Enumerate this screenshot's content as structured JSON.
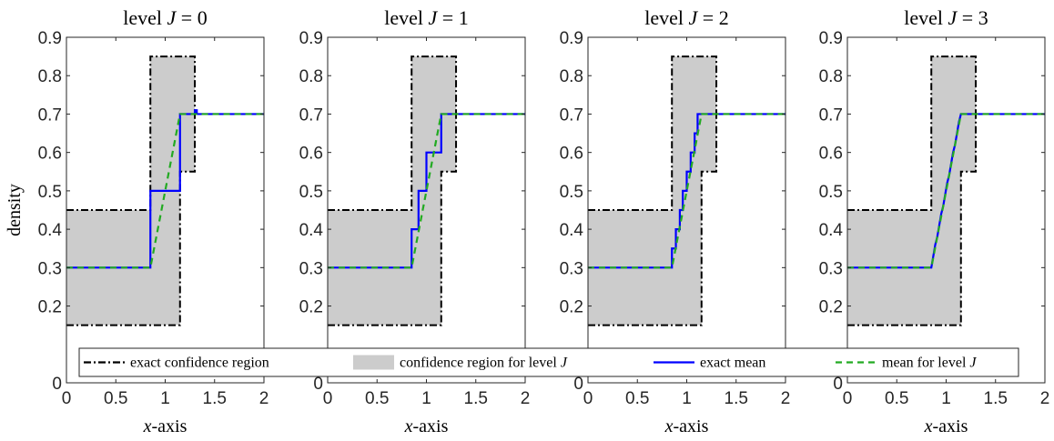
{
  "chart_data": {
    "type": "line",
    "ylabel": "density",
    "xlabel_var": "x",
    "xlabel_rest": "-axis",
    "xlim": [
      0,
      2
    ],
    "ylim": [
      0,
      0.9
    ],
    "xticks": [
      0,
      0.5,
      1,
      1.5,
      2
    ],
    "xtick_labels": [
      "0",
      "0.5",
      "1",
      "1.5",
      "2"
    ],
    "yticks": [
      0,
      0.2,
      0.3,
      0.4,
      0.5,
      0.6,
      0.7,
      0.8,
      0.9
    ],
    "ytick_labels": [
      "0",
      "0.2",
      "0.3",
      "0.4",
      "0.5",
      "0.6",
      "0.7",
      "0.8",
      "0.9"
    ],
    "colors": {
      "exact_region": "#000000",
      "region_fill": "#cccccc",
      "exact_mean": "#0000ff",
      "level_mean": "#22aa22"
    },
    "legend": {
      "placement": "bottom",
      "entries": [
        {
          "key": "exact_region",
          "label": "exact confidence region",
          "style": "dashdot"
        },
        {
          "key": "region_fill",
          "label_prefix": "confidence region for level ",
          "label_var": "J",
          "style": "patch"
        },
        {
          "key": "exact_mean",
          "label": "exact mean",
          "style": "solid"
        },
        {
          "key": "level_mean",
          "label_prefix": "mean for level ",
          "label_var": "J",
          "style": "dashed"
        }
      ]
    },
    "exact_region": {
      "upper": [
        [
          0,
          0.45
        ],
        [
          0.85,
          0.45
        ],
        [
          0.85,
          0.85
        ],
        [
          1.3,
          0.85
        ],
        [
          1.3,
          0.7
        ],
        [
          2,
          0.7
        ]
      ],
      "lower": [
        [
          0,
          0.15
        ],
        [
          1.15,
          0.15
        ],
        [
          1.15,
          0.55
        ],
        [
          1.3,
          0.55
        ],
        [
          1.3,
          0.7
        ],
        [
          2,
          0.7
        ]
      ]
    },
    "panels": [
      {
        "title_prefix": "level ",
        "title_var": "J",
        "title_suffix": " = 0",
        "exact_mean": [
          [
            0,
            0.3
          ],
          [
            0.85,
            0.3
          ],
          [
            0.85,
            0.5
          ],
          [
            1.15,
            0.5
          ],
          [
            1.15,
            0.7
          ],
          [
            1.3,
            0.7
          ],
          [
            1.3,
            0.71
          ],
          [
            1.32,
            0.71
          ],
          [
            1.32,
            0.7
          ],
          [
            2,
            0.7
          ]
        ],
        "level_mean": [
          [
            0,
            0.3
          ],
          [
            0.85,
            0.3
          ],
          [
            1.15,
            0.7
          ],
          [
            2,
            0.7
          ]
        ]
      },
      {
        "title_prefix": "level ",
        "title_var": "J",
        "title_suffix": " = 1",
        "exact_mean": [
          [
            0,
            0.3
          ],
          [
            0.85,
            0.3
          ],
          [
            0.85,
            0.4
          ],
          [
            0.92,
            0.4
          ],
          [
            0.92,
            0.5
          ],
          [
            1.0,
            0.5
          ],
          [
            1.0,
            0.6
          ],
          [
            1.08,
            0.6
          ],
          [
            1.08,
            0.6
          ],
          [
            1.15,
            0.6
          ],
          [
            1.15,
            0.7
          ],
          [
            2,
            0.7
          ]
        ],
        "level_mean": [
          [
            0,
            0.3
          ],
          [
            0.85,
            0.3
          ],
          [
            1.15,
            0.7
          ],
          [
            2,
            0.7
          ]
        ]
      },
      {
        "title_prefix": "level ",
        "title_var": "J",
        "title_suffix": " = 2",
        "exact_mean": [
          [
            0,
            0.3
          ],
          [
            0.85,
            0.3
          ],
          [
            0.85,
            0.35
          ],
          [
            0.89,
            0.35
          ],
          [
            0.89,
            0.4
          ],
          [
            0.93,
            0.4
          ],
          [
            0.93,
            0.45
          ],
          [
            0.96,
            0.45
          ],
          [
            0.96,
            0.5
          ],
          [
            1.0,
            0.5
          ],
          [
            1.0,
            0.55
          ],
          [
            1.04,
            0.55
          ],
          [
            1.04,
            0.6
          ],
          [
            1.08,
            0.6
          ],
          [
            1.08,
            0.65
          ],
          [
            1.11,
            0.65
          ],
          [
            1.11,
            0.7
          ],
          [
            2,
            0.7
          ]
        ],
        "level_mean": [
          [
            0,
            0.3
          ],
          [
            0.85,
            0.3
          ],
          [
            1.15,
            0.7
          ],
          [
            2,
            0.7
          ]
        ]
      },
      {
        "title_prefix": "level ",
        "title_var": "J",
        "title_suffix": " = 3",
        "exact_mean": [
          [
            0,
            0.3
          ],
          [
            0.85,
            0.3
          ],
          [
            0.87,
            0.33
          ],
          [
            0.89,
            0.36
          ],
          [
            0.91,
            0.38
          ],
          [
            0.93,
            0.41
          ],
          [
            0.95,
            0.44
          ],
          [
            0.97,
            0.46
          ],
          [
            0.99,
            0.49
          ],
          [
            1.01,
            0.52
          ],
          [
            1.03,
            0.54
          ],
          [
            1.05,
            0.57
          ],
          [
            1.07,
            0.6
          ],
          [
            1.09,
            0.62
          ],
          [
            1.11,
            0.65
          ],
          [
            1.13,
            0.68
          ],
          [
            1.15,
            0.7
          ],
          [
            2,
            0.7
          ]
        ],
        "level_mean": [
          [
            0,
            0.3
          ],
          [
            0.85,
            0.3
          ],
          [
            1.15,
            0.7
          ],
          [
            2,
            0.7
          ]
        ]
      }
    ]
  }
}
